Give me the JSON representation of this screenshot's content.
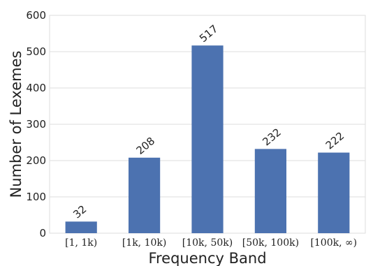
{
  "chart_data": {
    "type": "bar",
    "categories": [
      "[1, 1k)",
      "[1k, 10k)",
      "[10k, 50k)",
      "[50k, 100k)",
      "[100k, ∞)"
    ],
    "values": [
      32,
      208,
      517,
      232,
      222
    ],
    "data_labels": [
      "32",
      "208",
      "517",
      "232",
      "222"
    ],
    "xlabel": "Frequency Band",
    "ylabel": "Number of Lexemes",
    "ylim": [
      0,
      600
    ],
    "yticks": [
      "0",
      "100",
      "200",
      "300",
      "400",
      "500",
      "600"
    ],
    "grid": true,
    "bar_color": "#4c72b0"
  }
}
